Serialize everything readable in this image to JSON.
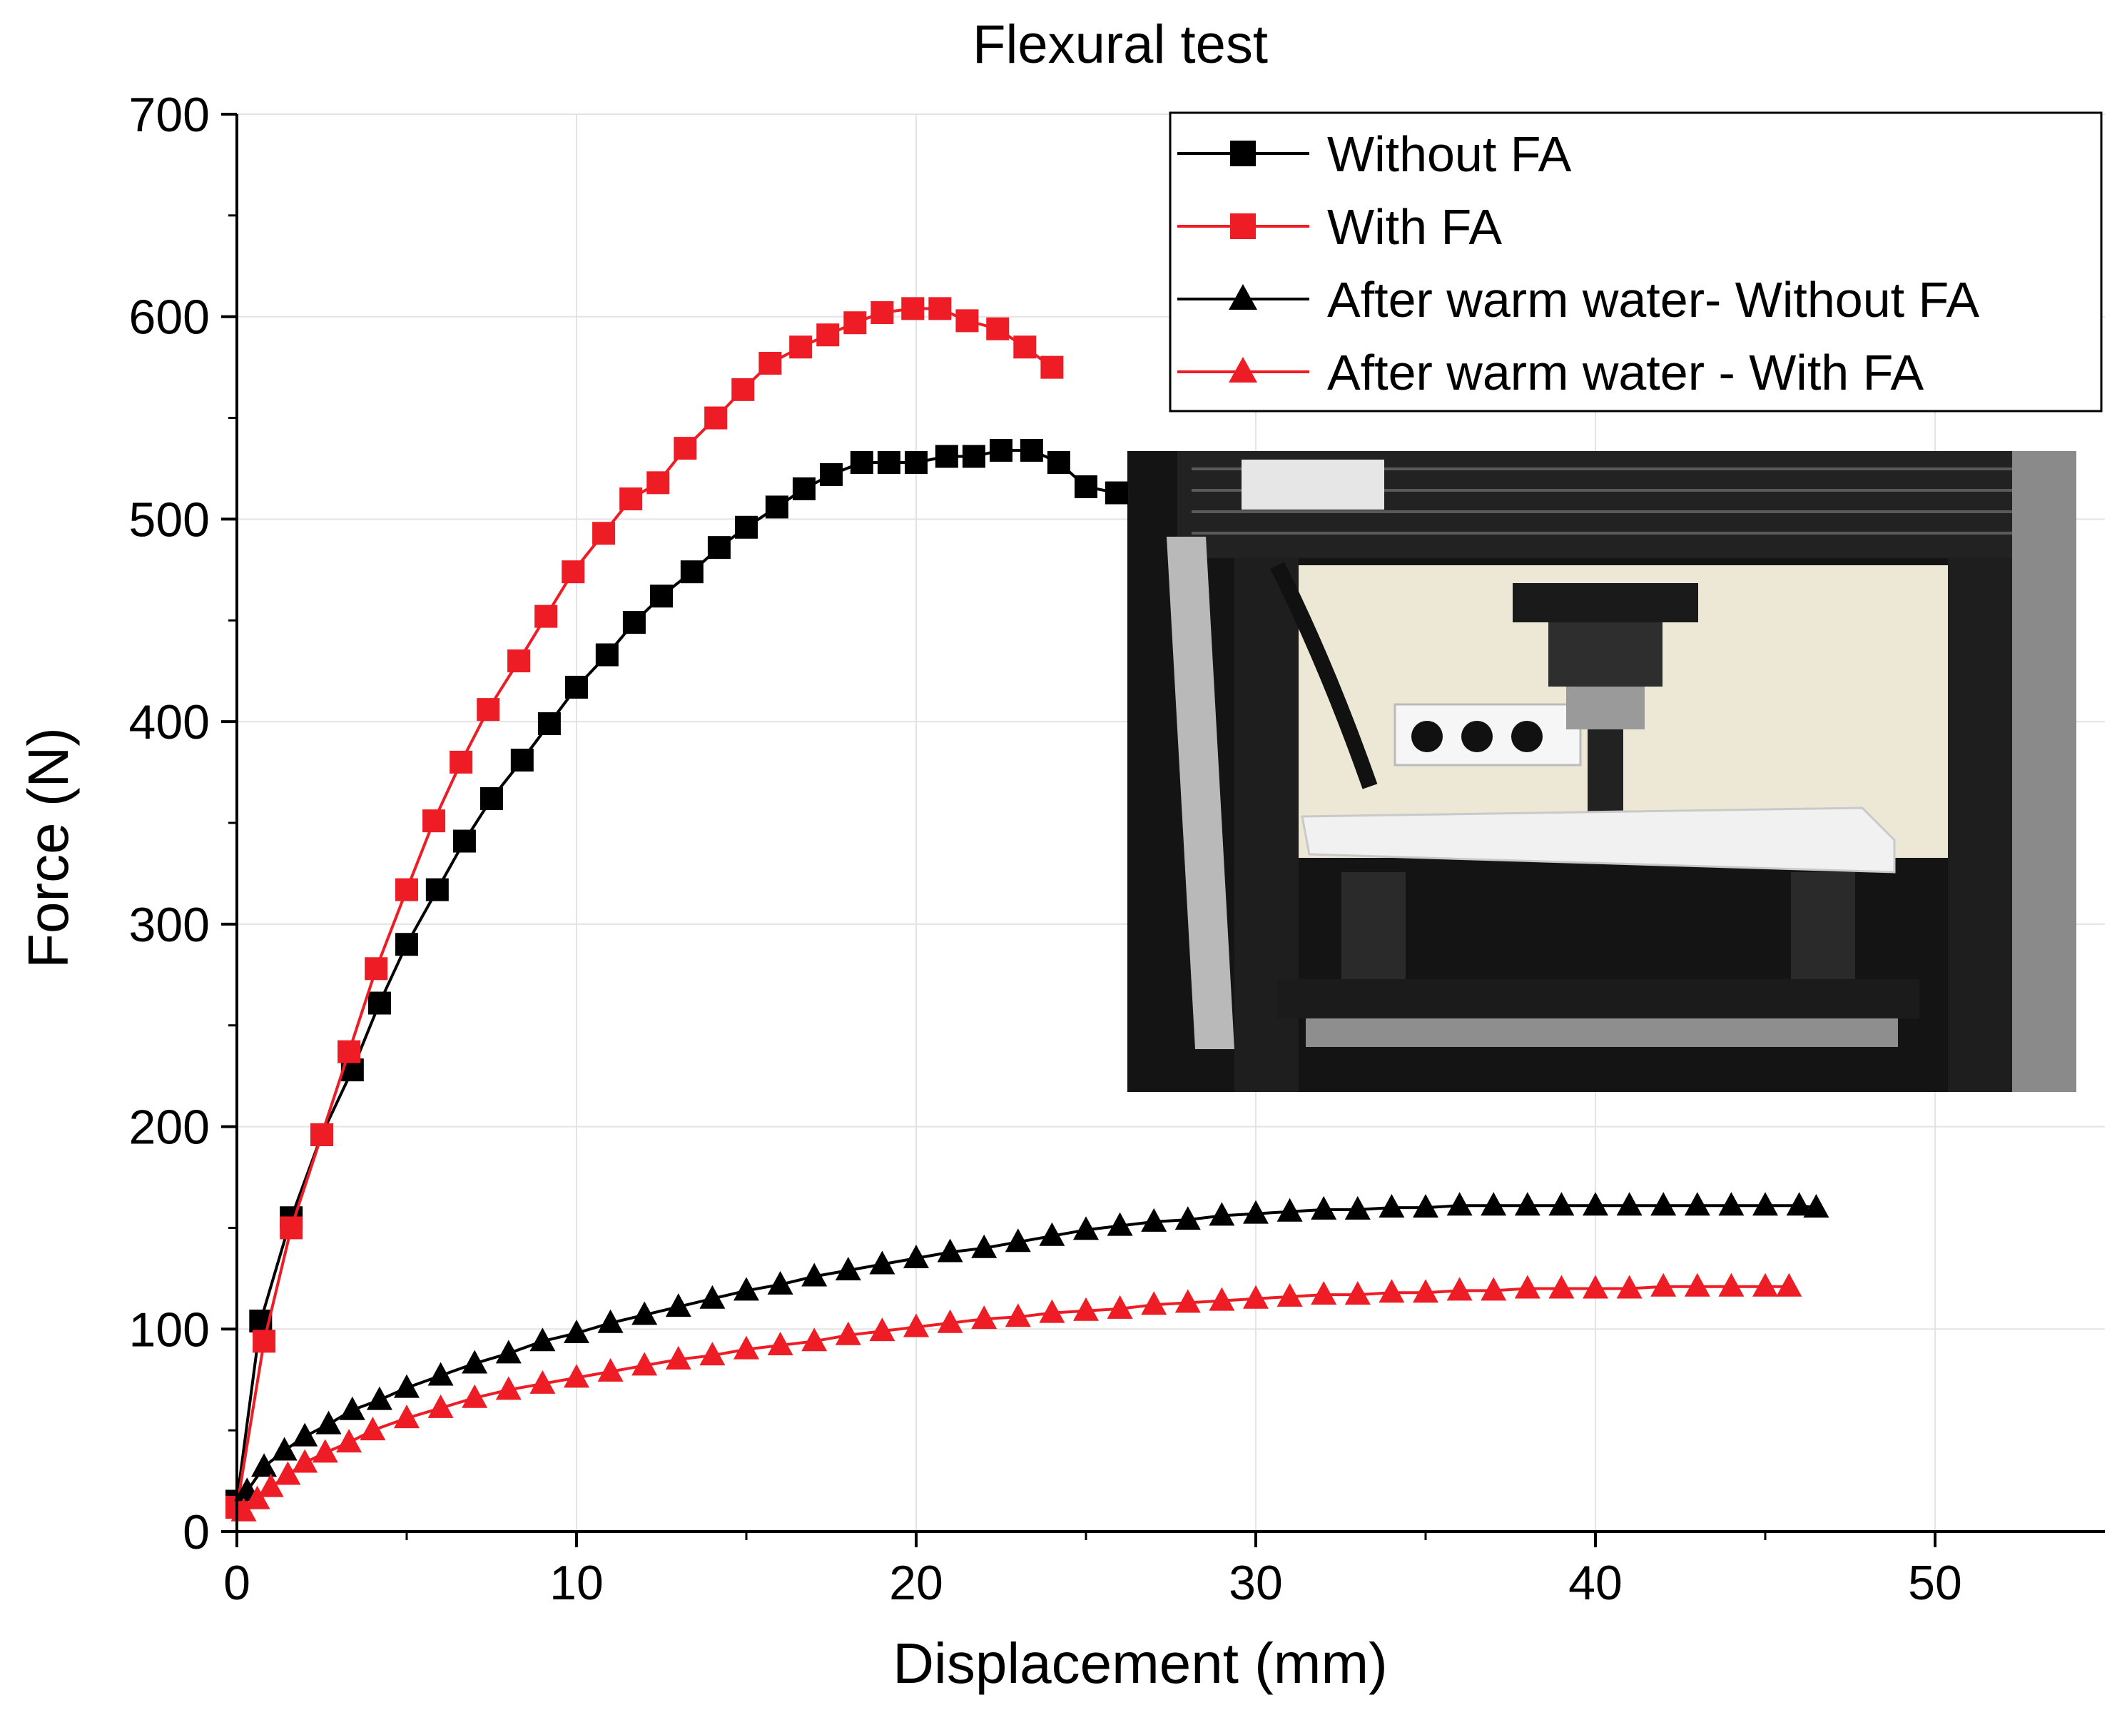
{
  "chart_data": {
    "type": "line",
    "title": "Flexural test",
    "xlabel": "Displacement (mm)",
    "ylabel": "Force (N)",
    "xlim": [
      0,
      55
    ],
    "ylim": [
      0,
      700
    ],
    "xticks": [
      0,
      10,
      20,
      30,
      40,
      50
    ],
    "yticks": [
      0,
      100,
      200,
      300,
      400,
      500,
      600,
      700
    ],
    "grid": true,
    "legend_position": "top-right",
    "inset": "photograph of flexural test setup: specimen on supports under loading head",
    "series": [
      {
        "name": "Without FA",
        "color": "#000000",
        "marker": "square",
        "x": [
          0.0,
          0.7,
          1.6,
          2.5,
          3.4,
          4.2,
          5.0,
          5.9,
          6.7,
          7.5,
          8.4,
          9.2,
          10.0,
          10.9,
          11.7,
          12.5,
          13.4,
          14.2,
          15.0,
          15.9,
          16.7,
          17.5,
          18.4,
          19.2,
          20.0,
          20.9,
          21.7,
          22.5,
          23.4,
          24.2,
          25.0,
          25.9
        ],
        "y": [
          15,
          104,
          155,
          196,
          228,
          261,
          290,
          317,
          341,
          362,
          381,
          399,
          417,
          433,
          449,
          462,
          474,
          486,
          496,
          506,
          515,
          522,
          528,
          528,
          528,
          531,
          531,
          534,
          534,
          528,
          516,
          513
        ]
      },
      {
        "name": "With FA",
        "color": "#ee1c24",
        "marker": "square",
        "x": [
          0.0,
          0.8,
          1.6,
          2.5,
          3.3,
          4.1,
          5.0,
          5.8,
          6.6,
          7.4,
          8.3,
          9.1,
          9.9,
          10.8,
          11.6,
          12.4,
          13.2,
          14.1,
          14.9,
          15.7,
          16.6,
          17.4,
          18.2,
          19.0,
          19.9,
          20.7,
          21.5,
          22.4,
          23.2,
          24.0
        ],
        "y": [
          12,
          94,
          150,
          196,
          237,
          278,
          317,
          351,
          380,
          406,
          430,
          452,
          474,
          493,
          510,
          518,
          535,
          550,
          564,
          577,
          585,
          591,
          597,
          602,
          604,
          604,
          598,
          594,
          585,
          575
        ]
      },
      {
        "name": "After warm water- Without FA",
        "color": "#000000",
        "marker": "triangle",
        "x": [
          0.3,
          0.8,
          1.4,
          2.0,
          2.7,
          3.4,
          4.2,
          5.0,
          6.0,
          7.0,
          8.0,
          9.0,
          10.0,
          11.0,
          12.0,
          13.0,
          14.0,
          15.0,
          16.0,
          17.0,
          18.0,
          19.0,
          20.0,
          21.0,
          22.0,
          23.0,
          24.0,
          25.0,
          26.0,
          27.0,
          28.0,
          29.0,
          30.0,
          31.0,
          32.0,
          33.0,
          34.0,
          35.0,
          36.0,
          37.0,
          38.0,
          39.0,
          40.0,
          41.0,
          42.0,
          43.0,
          44.0,
          45.0,
          46.0,
          46.5
        ],
        "y": [
          20,
          32,
          40,
          47,
          53,
          60,
          65,
          71,
          77,
          83,
          88,
          94,
          98,
          103,
          107,
          111,
          115,
          119,
          122,
          126,
          129,
          132,
          135,
          138,
          140,
          143,
          146,
          149,
          151,
          153,
          154,
          156,
          157,
          158,
          159,
          159,
          160,
          160,
          161,
          161,
          161,
          161,
          161,
          161,
          161,
          161,
          161,
          161,
          161,
          160
        ]
      },
      {
        "name": "After warm water - With FA",
        "color": "#ee1c24",
        "marker": "triangle",
        "x": [
          0.2,
          0.6,
          1.0,
          1.5,
          2.0,
          2.6,
          3.3,
          4.0,
          5.0,
          6.0,
          7.0,
          8.0,
          9.0,
          10.0,
          11.0,
          12.0,
          13.0,
          14.0,
          15.0,
          16.0,
          17.0,
          18.0,
          19.0,
          20.0,
          21.0,
          22.0,
          23.0,
          24.0,
          25.0,
          26.0,
          27.0,
          28.0,
          29.0,
          30.0,
          31.0,
          32.0,
          33.0,
          34.0,
          35.0,
          36.0,
          37.0,
          38.0,
          39.0,
          40.0,
          41.0,
          42.0,
          43.0,
          44.0,
          45.0,
          45.7
        ],
        "y": [
          10,
          16,
          22,
          28,
          34,
          39,
          44,
          50,
          56,
          61,
          66,
          70,
          73,
          76,
          79,
          82,
          85,
          87,
          90,
          92,
          94,
          97,
          99,
          101,
          103,
          105,
          106,
          108,
          109,
          110,
          112,
          113,
          114,
          115,
          116,
          117,
          117,
          118,
          118,
          119,
          119,
          120,
          120,
          120,
          120,
          121,
          121,
          121,
          121,
          121
        ]
      }
    ]
  }
}
